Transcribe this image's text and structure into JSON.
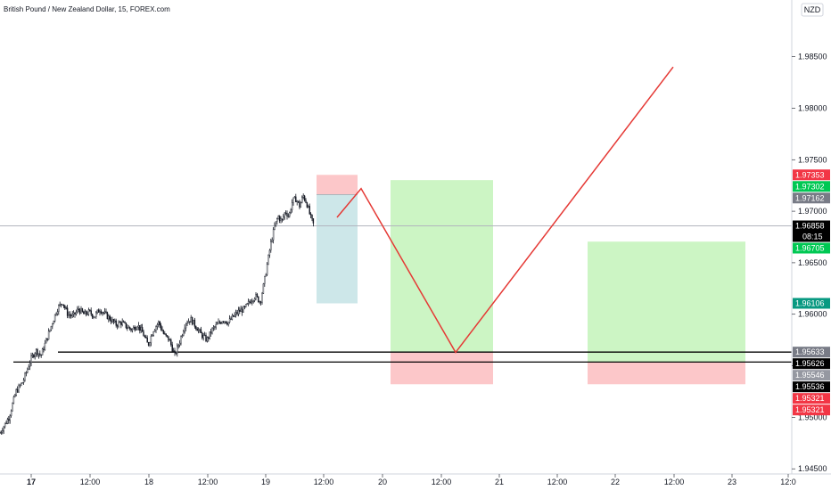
{
  "chart_data": {
    "type": "candlestick",
    "title": "British Pound / New Zealand Dollar, 15, FOREX.com",
    "currency": "NZD",
    "ylim": [
      1.9445,
      1.9905
    ],
    "yticks": [
      1.945,
      1.95,
      1.955,
      1.96,
      1.965,
      1.97,
      1.975,
      1.98,
      1.985
    ],
    "ytick_labels": [
      "1.94500",
      "1.95000",
      "1.95500",
      "1.96000",
      "1.96500",
      "1.97000",
      "1.97500",
      "1.98000",
      "1.98500"
    ],
    "xlim": [
      0,
      900
    ],
    "xticks": [
      {
        "x": 35,
        "label": "17",
        "bold": true
      },
      {
        "x": 101,
        "label": "12:00"
      },
      {
        "x": 167,
        "label": "18"
      },
      {
        "x": 233,
        "label": "12:00"
      },
      {
        "x": 298,
        "label": "19"
      },
      {
        "x": 363,
        "label": "12:00"
      },
      {
        "x": 429,
        "label": "20"
      },
      {
        "x": 495,
        "label": "12:00"
      },
      {
        "x": 560,
        "label": "21"
      },
      {
        "x": 625,
        "label": "12:00"
      },
      {
        "x": 690,
        "label": "22"
      },
      {
        "x": 756,
        "label": "12:00"
      },
      {
        "x": 821,
        "label": "23"
      },
      {
        "x": 884,
        "label": "12:0"
      }
    ],
    "price_path": [
      [
        0,
        1.9485
      ],
      [
        10,
        1.95
      ],
      [
        18,
        1.9525
      ],
      [
        26,
        1.9535
      ],
      [
        34,
        1.9555
      ],
      [
        40,
        1.9565
      ],
      [
        46,
        1.956
      ],
      [
        52,
        1.9575
      ],
      [
        58,
        1.959
      ],
      [
        64,
        1.9605
      ],
      [
        70,
        1.9612
      ],
      [
        76,
        1.96
      ],
      [
        82,
        1.9598
      ],
      [
        88,
        1.9605
      ],
      [
        94,
        1.96
      ],
      [
        100,
        1.9602
      ],
      [
        106,
        1.9598
      ],
      [
        112,
        1.9605
      ],
      [
        118,
        1.96
      ],
      [
        124,
        1.9595
      ],
      [
        130,
        1.959
      ],
      [
        136,
        1.9592
      ],
      [
        142,
        1.9588
      ],
      [
        148,
        1.9585
      ],
      [
        154,
        1.959
      ],
      [
        160,
        1.9582
      ],
      [
        166,
        1.957
      ],
      [
        172,
        1.9585
      ],
      [
        178,
        1.9592
      ],
      [
        184,
        1.958
      ],
      [
        190,
        1.9575
      ],
      [
        196,
        1.956
      ],
      [
        202,
        1.9575
      ],
      [
        208,
        1.9592
      ],
      [
        214,
        1.9595
      ],
      [
        220,
        1.9588
      ],
      [
        226,
        1.958
      ],
      [
        232,
        1.9575
      ],
      [
        238,
        1.9585
      ],
      [
        244,
        1.959
      ],
      [
        250,
        1.9595
      ],
      [
        256,
        1.9592
      ],
      [
        262,
        1.9598
      ],
      [
        268,
        1.9603
      ],
      [
        274,
        1.9605
      ],
      [
        280,
        1.9612
      ],
      [
        286,
        1.9618
      ],
      [
        292,
        1.9612
      ],
      [
        296,
        1.963
      ],
      [
        300,
        1.965
      ],
      [
        304,
        1.967
      ],
      [
        308,
        1.9685
      ],
      [
        312,
        1.9695
      ],
      [
        316,
        1.969
      ],
      [
        320,
        1.97
      ],
      [
        324,
        1.9695
      ],
      [
        328,
        1.971
      ],
      [
        332,
        1.9712
      ],
      [
        336,
        1.9705
      ],
      [
        340,
        1.9715
      ],
      [
        344,
        1.9708
      ],
      [
        348,
        1.9695
      ],
      [
        352,
        1.9686
      ]
    ],
    "horizontal_lines": [
      {
        "price": 1.95633,
        "x_start": 65,
        "x_end": 888
      },
      {
        "price": 1.95536,
        "x_start": 15,
        "x_end": 888
      }
    ],
    "current_price_line": 1.96858,
    "positions": [
      {
        "x_start": 355,
        "x_end": 401,
        "entry": 1.97162,
        "stop": 1.97353,
        "target": 1.96106
      },
      {
        "x_start": 438,
        "x_end": 553,
        "entry": 1.95633,
        "stop": 1.95321,
        "target": 1.97302
      },
      {
        "x_start": 659,
        "x_end": 836,
        "entry": 1.95536,
        "stop": 1.95321,
        "target": 1.96705
      }
    ],
    "projection_path": [
      [
        378,
        1.9694
      ],
      [
        405,
        1.9722
      ],
      [
        511,
        1.9563
      ],
      [
        755,
        1.984
      ]
    ],
    "price_tags": [
      {
        "label": "1.97353",
        "price": 1.97353,
        "color": "#f23645"
      },
      {
        "label": "1.97302",
        "price": 1.97302,
        "color": "#00c853"
      },
      {
        "label": "1.97162",
        "price": 1.97162,
        "color": "#787b86"
      },
      {
        "label": "1.96858",
        "price": 1.96858,
        "color": "#000000",
        "sub": "08:15"
      },
      {
        "label": "1.96705",
        "price": 1.96705,
        "color": "#00c853"
      },
      {
        "label": "1.96106",
        "price": 1.96106,
        "color": "#089981"
      },
      {
        "label": "1.95633",
        "price": 1.95633,
        "color": "#787b86"
      },
      {
        "label": "1.95626",
        "price": 1.95626,
        "color": "#000000"
      },
      {
        "label": "1.95546",
        "price": 1.95546,
        "color": "#9598a1"
      },
      {
        "label": "1.95536",
        "price": 1.95536,
        "color": "#000000"
      },
      {
        "label": "1.95321",
        "price": 1.95321,
        "color": "#f23645"
      },
      {
        "label": "1.95321",
        "price": 1.95321,
        "color": "#f23645"
      }
    ],
    "colors": {
      "candle": "#131722",
      "profit_zone": "#ccf5c4",
      "loss_zone": "#fcc7c9",
      "short_profit_zone": "#cde7e9",
      "projection": "#e53935",
      "level_line": "#000000",
      "current_line": "#b2b5be"
    }
  }
}
